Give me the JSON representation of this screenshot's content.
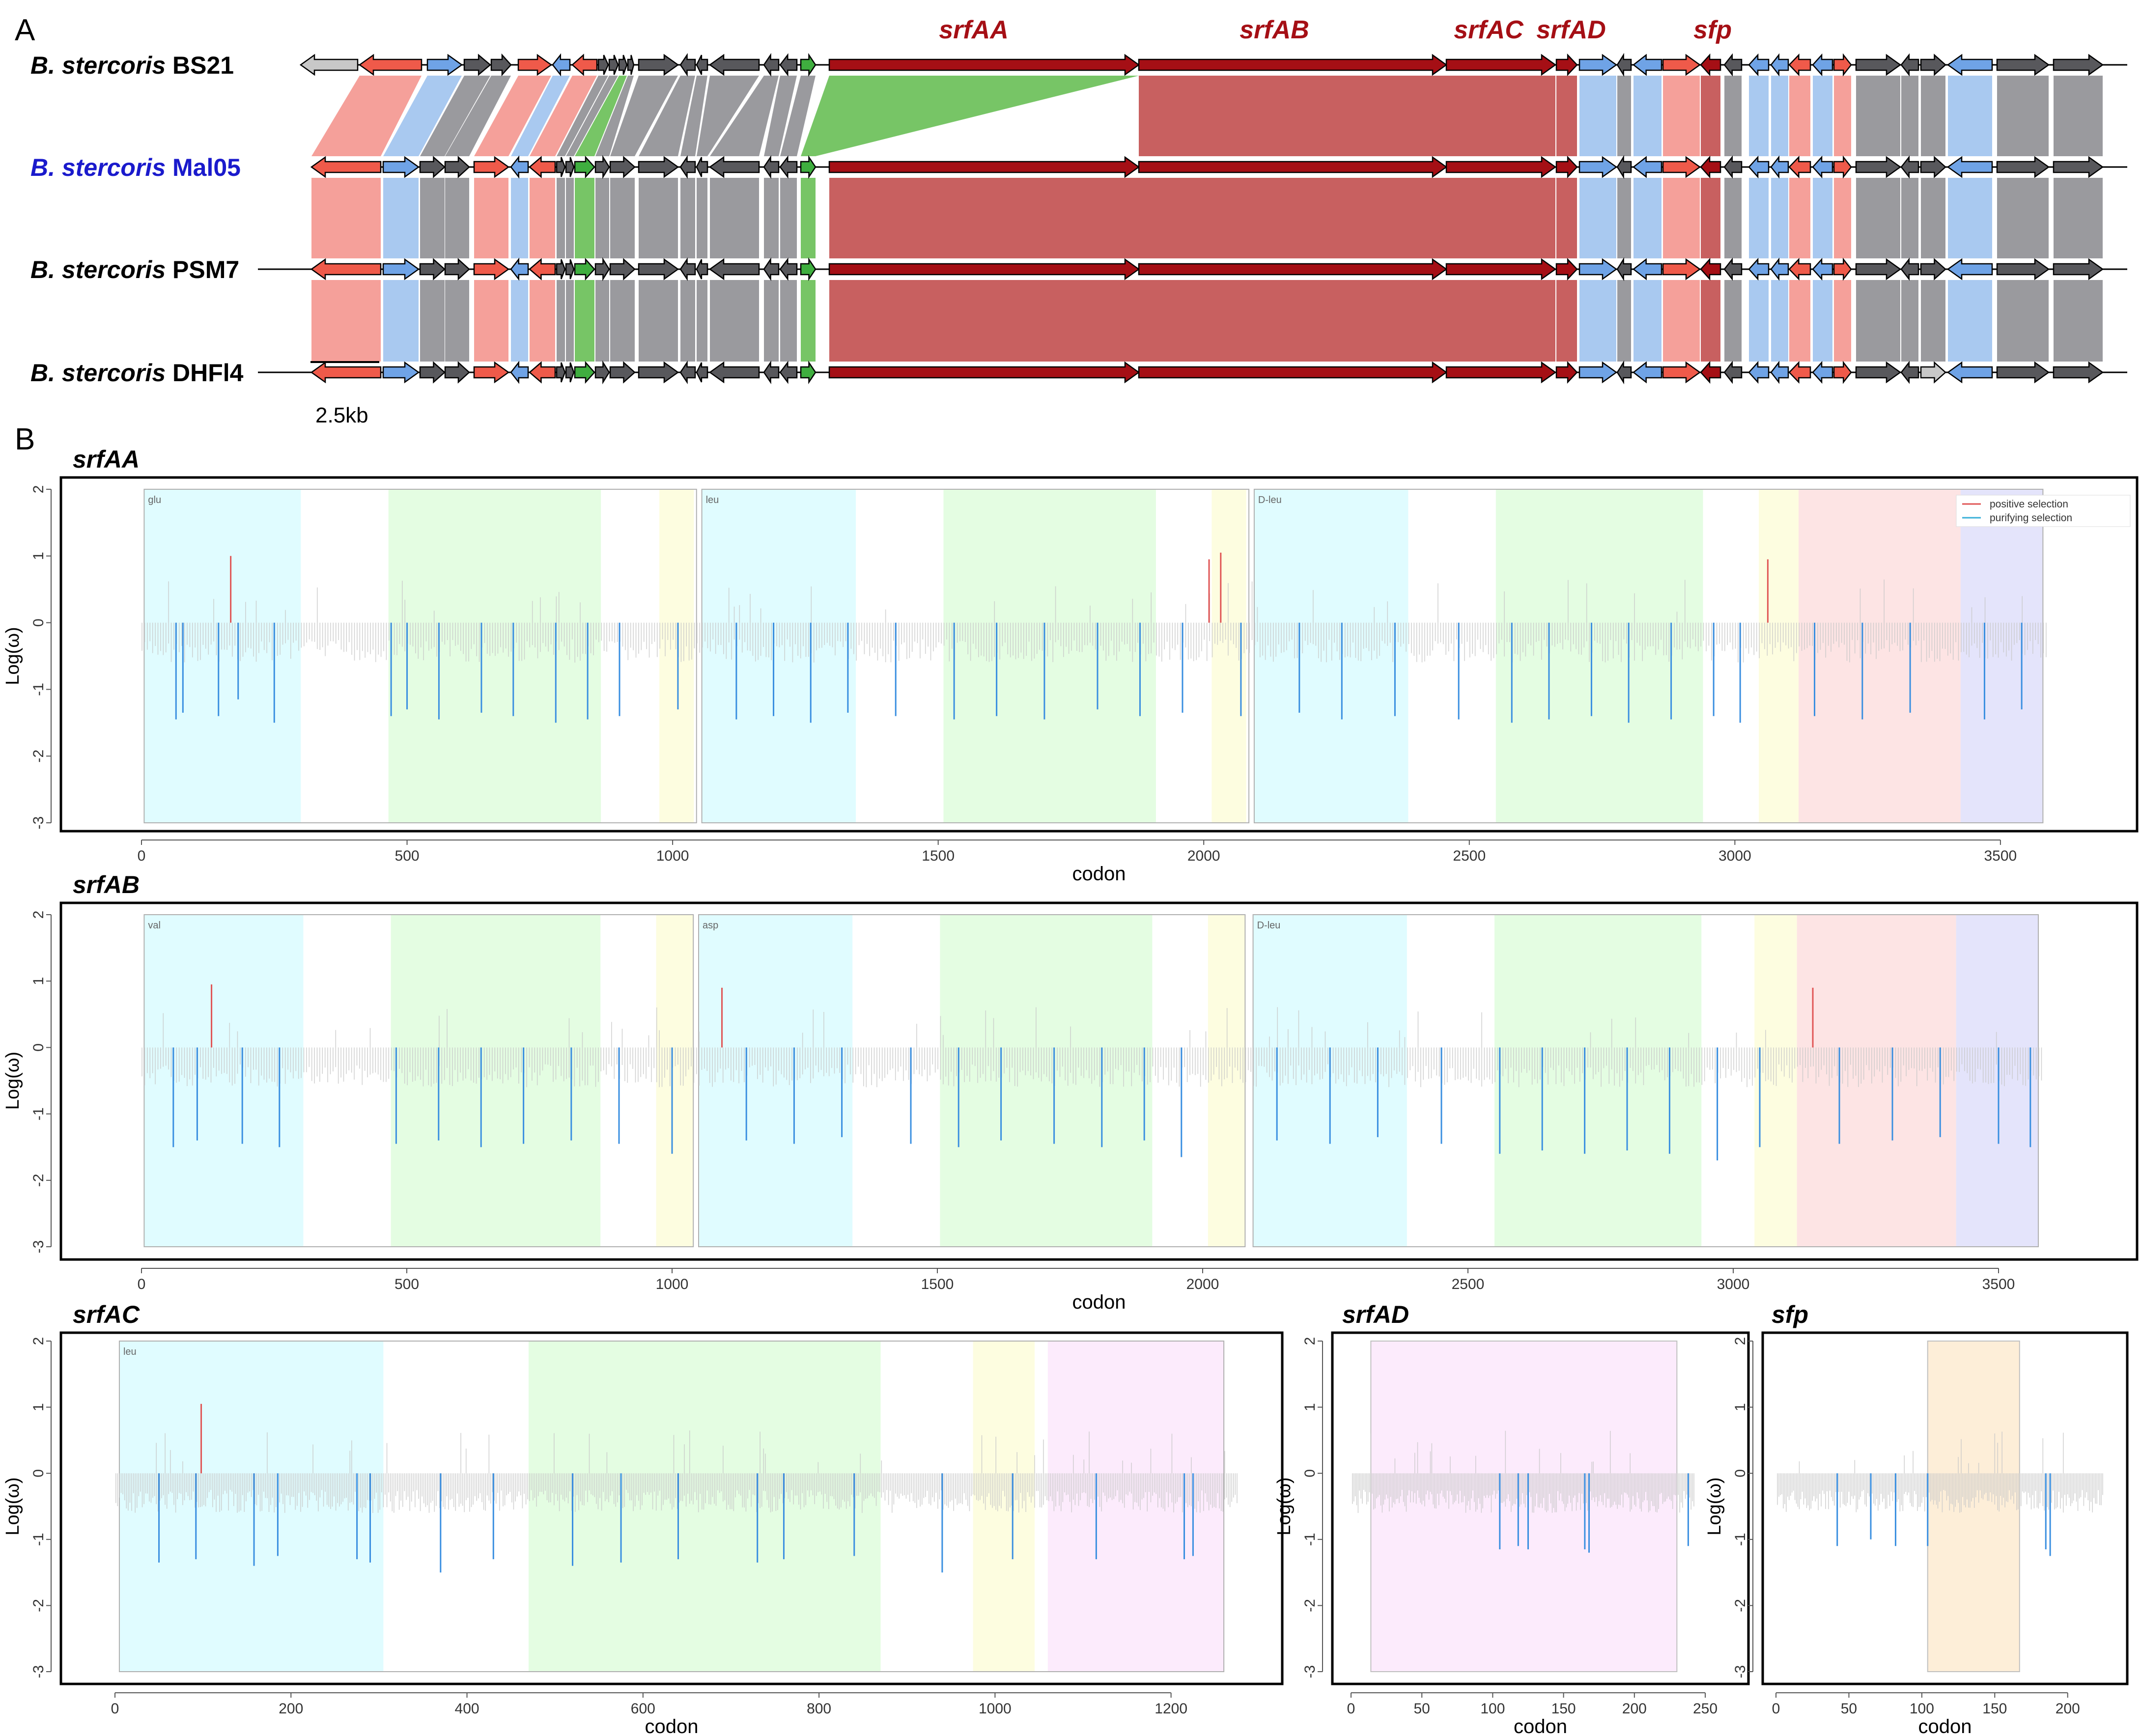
{
  "panel_a": {
    "letter": "A",
    "scale_label": "2.5kb",
    "genus_abbr": "B. stercoris",
    "strains": [
      {
        "species": "B. stercoris",
        "strain": "BS21",
        "color": "#000000"
      },
      {
        "species": "B. stercoris",
        "strain": "Mal05",
        "color": "#1a1acc"
      },
      {
        "species": "B. stercoris",
        "strain": "PSM7",
        "color": "#000000"
      },
      {
        "species": "B. stercoris",
        "strain": "DHFl4",
        "color": "#000000"
      }
    ],
    "gene_labels": [
      "srfAA",
      "srfAB",
      "srfAC",
      "srfAD",
      "sfp"
    ],
    "colors": {
      "srf_gene": "#a50f15",
      "srf_band": "#c86060",
      "red_gene": "#ef5a4a",
      "red_band": "#f5a09a",
      "blue_gene": "#6fa3e6",
      "blue_band": "#a9c9f0",
      "dark_gene": "#58585c",
      "gray_band": "#9a9a9e",
      "green_gene": "#3fae3f",
      "green_band": "#77c566",
      "light_gene": "#c8c8c8",
      "label_red": "#a50f15"
    }
  },
  "panel_b": {
    "letter": "B",
    "legend": {
      "positive": "positive selection",
      "purifying": "purifying selection"
    },
    "colors": {
      "positive": "#e05555",
      "purifying": "#3a8fe0",
      "neutral": "#c8c8c8"
    },
    "domain_colors": {
      "A": "#e0fcff",
      "C": "#e4fde2",
      "T": "#fdfde0",
      "TE": "#fde4e4",
      "E": "#e4e4fb",
      "D": "#fcebfc",
      "P": "#fdeed8"
    }
  },
  "chart_data": [
    {
      "type": "bar",
      "title": "srfAA",
      "xlabel": "codon",
      "ylabel": "Log(ω)",
      "xlim": [
        0,
        3600
      ],
      "ylim": [
        -3,
        2
      ],
      "xticks": [
        0,
        500,
        1000,
        1500,
        2000,
        2500,
        3000,
        3500
      ],
      "yticks": [
        2,
        1,
        0,
        -1,
        -2,
        -3
      ],
      "n_codons": 3586,
      "modules": [
        {
          "label": "glu",
          "start": 5,
          "end": 1045
        },
        {
          "label": "leu",
          "start": 1055,
          "end": 2085
        },
        {
          "label": "D-leu",
          "start": 2095,
          "end": 3580
        }
      ],
      "domains": [
        {
          "type": "A",
          "start": 5,
          "end": 300
        },
        {
          "type": "C",
          "start": 465,
          "end": 865
        },
        {
          "type": "T",
          "start": 975,
          "end": 1040
        },
        {
          "type": "A",
          "start": 1055,
          "end": 1345
        },
        {
          "type": "C",
          "start": 1510,
          "end": 1910
        },
        {
          "type": "T",
          "start": 2015,
          "end": 2080
        },
        {
          "type": "A",
          "start": 2095,
          "end": 2385
        },
        {
          "type": "C",
          "start": 2550,
          "end": 2940
        },
        {
          "type": "T",
          "start": 3045,
          "end": 3120
        },
        {
          "type": "TE",
          "start": 3120,
          "end": 3425
        },
        {
          "type": "E",
          "start": 3425,
          "end": 3580
        }
      ],
      "positive_sites": [
        {
          "codon": 168,
          "value": 1.0
        },
        {
          "codon": 2010,
          "value": 0.95
        },
        {
          "codon": 2032,
          "value": 1.05
        },
        {
          "codon": 3062,
          "value": 0.95
        }
      ],
      "purifying_sites": [
        {
          "codon": 65,
          "value": -1.45
        },
        {
          "codon": 78,
          "value": -1.35
        },
        {
          "codon": 145,
          "value": -1.4
        },
        {
          "codon": 182,
          "value": -1.15
        },
        {
          "codon": 250,
          "value": -1.5
        },
        {
          "codon": 470,
          "value": -1.4
        },
        {
          "codon": 500,
          "value": -1.3
        },
        {
          "codon": 560,
          "value": -1.45
        },
        {
          "codon": 640,
          "value": -1.35
        },
        {
          "codon": 700,
          "value": -1.4
        },
        {
          "codon": 780,
          "value": -1.5
        },
        {
          "codon": 840,
          "value": -1.45
        },
        {
          "codon": 900,
          "value": -1.4
        },
        {
          "codon": 1010,
          "value": -1.3
        },
        {
          "codon": 1120,
          "value": -1.45
        },
        {
          "codon": 1190,
          "value": -1.4
        },
        {
          "codon": 1260,
          "value": -1.5
        },
        {
          "codon": 1330,
          "value": -1.35
        },
        {
          "codon": 1420,
          "value": -1.4
        },
        {
          "codon": 1530,
          "value": -1.45
        },
        {
          "codon": 1610,
          "value": -1.4
        },
        {
          "codon": 1700,
          "value": -1.45
        },
        {
          "codon": 1800,
          "value": -1.3
        },
        {
          "codon": 1880,
          "value": -1.4
        },
        {
          "codon": 1960,
          "value": -1.35
        },
        {
          "codon": 2070,
          "value": -1.4
        },
        {
          "codon": 2180,
          "value": -1.35
        },
        {
          "codon": 2260,
          "value": -1.45
        },
        {
          "codon": 2360,
          "value": -1.4
        },
        {
          "codon": 2480,
          "value": -1.45
        },
        {
          "codon": 2580,
          "value": -1.5
        },
        {
          "codon": 2650,
          "value": -1.45
        },
        {
          "codon": 2730,
          "value": -1.4
        },
        {
          "codon": 2800,
          "value": -1.5
        },
        {
          "codon": 2880,
          "value": -1.45
        },
        {
          "codon": 2960,
          "value": -1.4
        },
        {
          "codon": 3010,
          "value": -1.5
        },
        {
          "codon": 3150,
          "value": -1.4
        },
        {
          "codon": 3240,
          "value": -1.45
        },
        {
          "codon": 3330,
          "value": -1.35
        },
        {
          "codon": 3470,
          "value": -1.45
        },
        {
          "codon": 3540,
          "value": -1.3
        }
      ]
    },
    {
      "type": "bar",
      "title": "srfAB",
      "xlabel": "codon",
      "ylabel": "Log(ω)",
      "xlim": [
        0,
        3600
      ],
      "ylim": [
        -3,
        2
      ],
      "xticks": [
        0,
        500,
        1000,
        1500,
        2000,
        2500,
        3000,
        3500
      ],
      "yticks": [
        2,
        1,
        0,
        -1,
        -2,
        -3
      ],
      "n_codons": 3584,
      "modules": [
        {
          "label": "val",
          "start": 5,
          "end": 1040
        },
        {
          "label": "asp",
          "start": 1050,
          "end": 2080
        },
        {
          "label": "D-leu",
          "start": 2095,
          "end": 3575
        }
      ],
      "domains": [
        {
          "type": "A",
          "start": 5,
          "end": 305
        },
        {
          "type": "C",
          "start": 470,
          "end": 865
        },
        {
          "type": "T",
          "start": 970,
          "end": 1040
        },
        {
          "type": "A",
          "start": 1050,
          "end": 1340
        },
        {
          "type": "C",
          "start": 1505,
          "end": 1905
        },
        {
          "type": "T",
          "start": 2010,
          "end": 2080
        },
        {
          "type": "A",
          "start": 2095,
          "end": 2385
        },
        {
          "type": "C",
          "start": 2550,
          "end": 2940
        },
        {
          "type": "T",
          "start": 3040,
          "end": 3120
        },
        {
          "type": "TE",
          "start": 3120,
          "end": 3420
        },
        {
          "type": "E",
          "start": 3420,
          "end": 3575
        }
      ],
      "positive_sites": [
        {
          "codon": 132,
          "value": 0.95
        },
        {
          "codon": 1094,
          "value": 0.9
        },
        {
          "codon": 3150,
          "value": 0.9
        }
      ],
      "purifying_sites": [
        {
          "codon": 60,
          "value": -1.5
        },
        {
          "codon": 105,
          "value": -1.4
        },
        {
          "codon": 190,
          "value": -1.45
        },
        {
          "codon": 260,
          "value": -1.5
        },
        {
          "codon": 480,
          "value": -1.45
        },
        {
          "codon": 560,
          "value": -1.4
        },
        {
          "codon": 640,
          "value": -1.5
        },
        {
          "codon": 720,
          "value": -1.45
        },
        {
          "codon": 810,
          "value": -1.4
        },
        {
          "codon": 900,
          "value": -1.45
        },
        {
          "codon": 1000,
          "value": -1.6
        },
        {
          "codon": 1140,
          "value": -1.4
        },
        {
          "codon": 1230,
          "value": -1.45
        },
        {
          "codon": 1320,
          "value": -1.35
        },
        {
          "codon": 1450,
          "value": -1.45
        },
        {
          "codon": 1540,
          "value": -1.5
        },
        {
          "codon": 1620,
          "value": -1.4
        },
        {
          "codon": 1720,
          "value": -1.45
        },
        {
          "codon": 1810,
          "value": -1.5
        },
        {
          "codon": 1890,
          "value": -1.4
        },
        {
          "codon": 1960,
          "value": -1.65
        },
        {
          "codon": 2140,
          "value": -1.4
        },
        {
          "codon": 2240,
          "value": -1.45
        },
        {
          "codon": 2330,
          "value": -1.35
        },
        {
          "codon": 2450,
          "value": -1.45
        },
        {
          "codon": 2560,
          "value": -1.6
        },
        {
          "codon": 2640,
          "value": -1.55
        },
        {
          "codon": 2720,
          "value": -1.6
        },
        {
          "codon": 2800,
          "value": -1.55
        },
        {
          "codon": 2880,
          "value": -1.6
        },
        {
          "codon": 2970,
          "value": -1.7
        },
        {
          "codon": 3050,
          "value": -1.5
        },
        {
          "codon": 3200,
          "value": -1.45
        },
        {
          "codon": 3300,
          "value": -1.4
        },
        {
          "codon": 3390,
          "value": -1.35
        },
        {
          "codon": 3500,
          "value": -1.45
        },
        {
          "codon": 3560,
          "value": -1.5
        }
      ]
    },
    {
      "type": "bar",
      "title": "srfAC",
      "xlabel": "codon",
      "ylabel": "Log(ω)",
      "xlim": [
        0,
        1275
      ],
      "ylim": [
        -3,
        2
      ],
      "xticks": [
        0,
        200,
        400,
        600,
        800,
        1000,
        1200
      ],
      "yticks": [
        2,
        1,
        0,
        -1,
        -2,
        -3
      ],
      "n_codons": 1275,
      "modules": [
        {
          "label": "leu",
          "start": 5,
          "end": 1260
        }
      ],
      "domains": [
        {
          "type": "A",
          "start": 5,
          "end": 305
        },
        {
          "type": "C",
          "start": 470,
          "end": 870
        },
        {
          "type": "T",
          "start": 975,
          "end": 1045
        },
        {
          "type": "D",
          "start": 1060,
          "end": 1260
        }
      ],
      "positive_sites": [
        {
          "codon": 98,
          "value": 1.05
        }
      ],
      "purifying_sites": [
        {
          "codon": 50,
          "value": -1.35
        },
        {
          "codon": 92,
          "value": -1.3
        },
        {
          "codon": 158,
          "value": -1.4
        },
        {
          "codon": 185,
          "value": -1.25
        },
        {
          "codon": 275,
          "value": -1.3
        },
        {
          "codon": 290,
          "value": -1.35
        },
        {
          "codon": 370,
          "value": -1.5
        },
        {
          "codon": 430,
          "value": -1.3
        },
        {
          "codon": 520,
          "value": -1.4
        },
        {
          "codon": 575,
          "value": -1.35
        },
        {
          "codon": 640,
          "value": -1.3
        },
        {
          "codon": 730,
          "value": -1.35
        },
        {
          "codon": 760,
          "value": -1.3
        },
        {
          "codon": 840,
          "value": -1.25
        },
        {
          "codon": 940,
          "value": -1.5
        },
        {
          "codon": 1020,
          "value": -1.3
        },
        {
          "codon": 1115,
          "value": -1.3
        },
        {
          "codon": 1215,
          "value": -1.3
        },
        {
          "codon": 1225,
          "value": -1.25
        }
      ]
    },
    {
      "type": "bar",
      "title": "srfAD",
      "xlabel": "codon",
      "ylabel": "Log(ω)",
      "xlim": [
        0,
        250
      ],
      "ylim": [
        -3,
        2
      ],
      "xticks": [
        0,
        50,
        100,
        150,
        200,
        250
      ],
      "yticks": [
        2,
        1,
        0,
        -1,
        -2,
        -3
      ],
      "n_codons": 242,
      "modules": [],
      "domains": [
        {
          "type": "D",
          "start": 14,
          "end": 230
        }
      ],
      "positive_sites": [],
      "purifying_sites": [
        {
          "codon": 105,
          "value": -1.15
        },
        {
          "codon": 118,
          "value": -1.1
        },
        {
          "codon": 125,
          "value": -1.15
        },
        {
          "codon": 165,
          "value": -1.15
        },
        {
          "codon": 168,
          "value": -1.2
        },
        {
          "codon": 238,
          "value": -1.1
        }
      ]
    },
    {
      "type": "bar",
      "title": "sfp",
      "xlabel": "codon",
      "ylabel": "Log(ω)",
      "xlim": [
        0,
        224
      ],
      "ylim": [
        -3,
        2
      ],
      "xticks": [
        0,
        50,
        100,
        150,
        200
      ],
      "yticks": [
        2,
        1,
        0,
        -1,
        -2,
        -3
      ],
      "n_codons": 224,
      "modules": [],
      "domains": [
        {
          "type": "P",
          "start": 104,
          "end": 167
        }
      ],
      "positive_sites": [],
      "purifying_sites": [
        {
          "codon": 42,
          "value": -1.1
        },
        {
          "codon": 65,
          "value": -1.0
        },
        {
          "codon": 82,
          "value": -1.1
        },
        {
          "codon": 104,
          "value": -1.1
        },
        {
          "codon": 185,
          "value": -1.15
        },
        {
          "codon": 188,
          "value": -1.25
        }
      ]
    }
  ]
}
